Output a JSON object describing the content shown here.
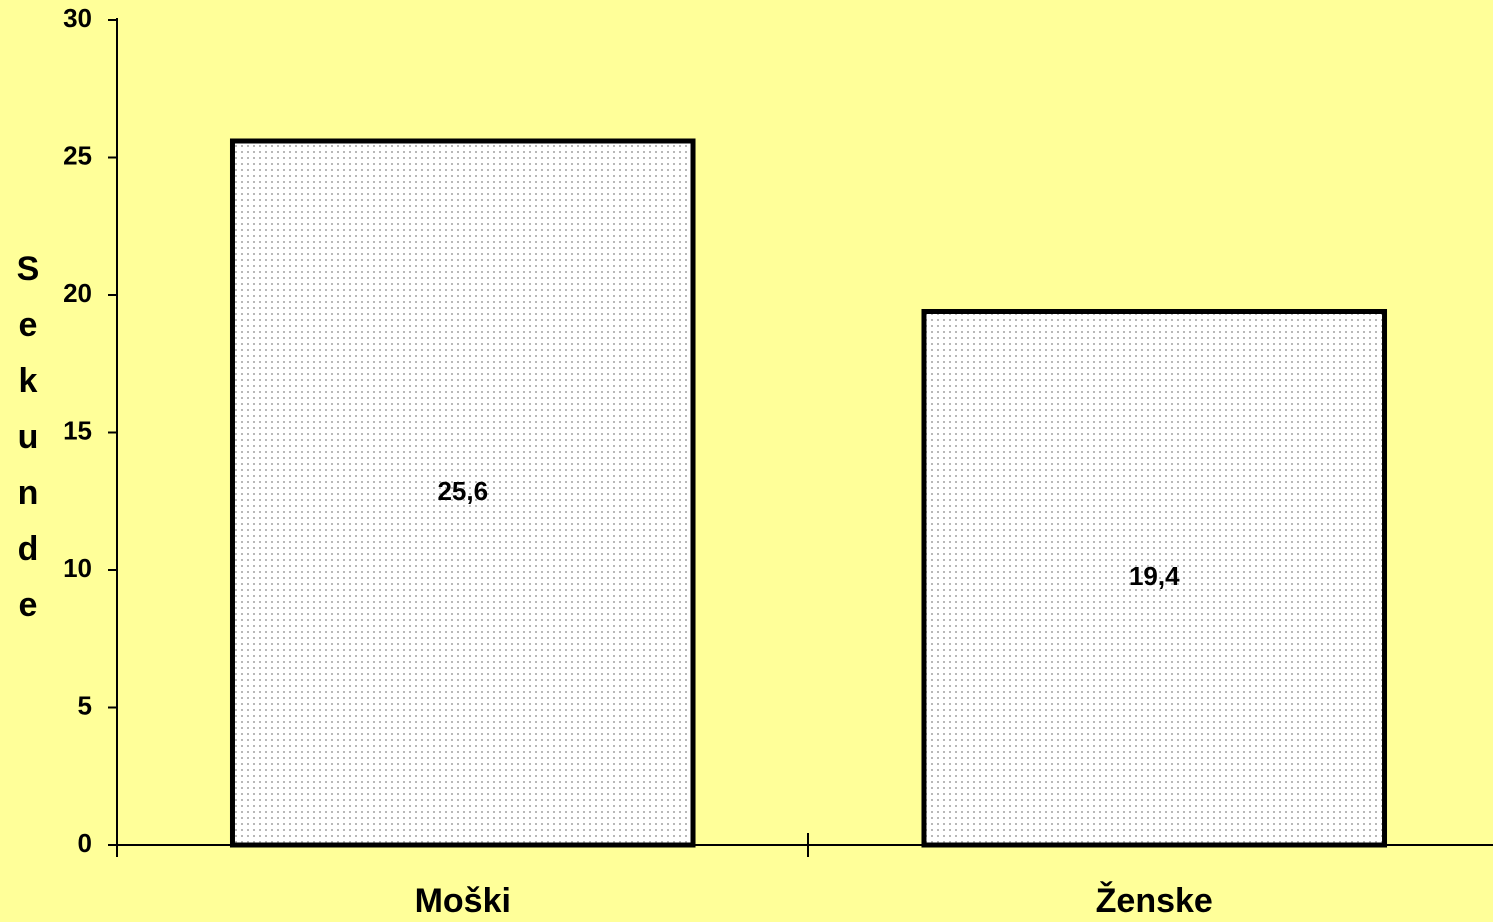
{
  "chart_data": {
    "type": "bar",
    "y_label": "Sekunde",
    "categories": [
      "Moški",
      "Ženske"
    ],
    "values": [
      25.6,
      19.4
    ],
    "value_labels": [
      "25,6",
      "19,4"
    ],
    "color": "#ffffff",
    "ylim": [
      0,
      30
    ],
    "yticks": [
      0,
      5,
      10,
      15,
      20,
      25,
      30
    ],
    "grid": false
  }
}
